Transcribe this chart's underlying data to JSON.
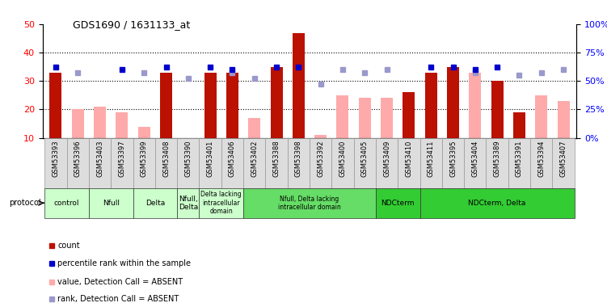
{
  "title": "GDS1690 / 1631133_at",
  "samples": [
    "GSM53393",
    "GSM53396",
    "GSM53403",
    "GSM53397",
    "GSM53399",
    "GSM53408",
    "GSM53390",
    "GSM53401",
    "GSM53406",
    "GSM53402",
    "GSM53388",
    "GSM53398",
    "GSM53392",
    "GSM53400",
    "GSM53405",
    "GSM53409",
    "GSM53410",
    "GSM53411",
    "GSM53395",
    "GSM53404",
    "GSM53389",
    "GSM53391",
    "GSM53394",
    "GSM53407"
  ],
  "count_red": [
    33,
    null,
    null,
    null,
    null,
    33,
    null,
    33,
    33,
    null,
    35,
    47,
    null,
    null,
    null,
    null,
    26,
    33,
    35,
    null,
    30,
    19,
    null,
    null
  ],
  "count_pink": [
    null,
    20,
    21,
    19,
    14,
    null,
    null,
    null,
    null,
    17,
    null,
    null,
    11,
    25,
    24,
    24,
    null,
    null,
    null,
    33,
    null,
    null,
    25,
    23
  ],
  "rank_blue": [
    35,
    null,
    null,
    34,
    null,
    35,
    null,
    35,
    34,
    null,
    35,
    35,
    null,
    null,
    null,
    null,
    null,
    35,
    35,
    34,
    35,
    null,
    null,
    null
  ],
  "rank_lightblue": [
    null,
    33,
    null,
    null,
    33,
    null,
    31,
    null,
    33,
    31,
    null,
    null,
    29,
    34,
    33,
    34,
    null,
    null,
    null,
    33,
    null,
    32,
    33,
    34
  ],
  "group_defs": [
    [
      0,
      2,
      "#ccffcc",
      "control"
    ],
    [
      2,
      4,
      "#ccffcc",
      "Nfull"
    ],
    [
      4,
      6,
      "#ccffcc",
      "Delta"
    ],
    [
      6,
      7,
      "#ccffcc",
      "Nfull,\nDelta"
    ],
    [
      7,
      9,
      "#ccffcc",
      "Delta lacking\nintracellular\ndomain"
    ],
    [
      9,
      15,
      "#66dd66",
      "Nfull, Delta lacking\nintracellular domain"
    ],
    [
      15,
      17,
      "#33cc33",
      "NDCterm"
    ],
    [
      17,
      24,
      "#33cc33",
      "NDCterm, Delta"
    ]
  ],
  "ylim_left": [
    10,
    50
  ],
  "ylim_right": [
    0,
    100
  ],
  "yticks_left": [
    10,
    20,
    30,
    40,
    50
  ],
  "yticks_right": [
    0,
    25,
    50,
    75,
    100
  ],
  "bar_color_red": "#bb1100",
  "bar_color_pink": "#ffaaaa",
  "dot_color_blue": "#0000cc",
  "dot_color_lightblue": "#9999cc",
  "gray_box_color": "#dddddd",
  "legend_items": [
    [
      "#bb1100",
      "count"
    ],
    [
      "#0000cc",
      "percentile rank within the sample"
    ],
    [
      "#ffaaaa",
      "value, Detection Call = ABSENT"
    ],
    [
      "#9999cc",
      "rank, Detection Call = ABSENT"
    ]
  ]
}
